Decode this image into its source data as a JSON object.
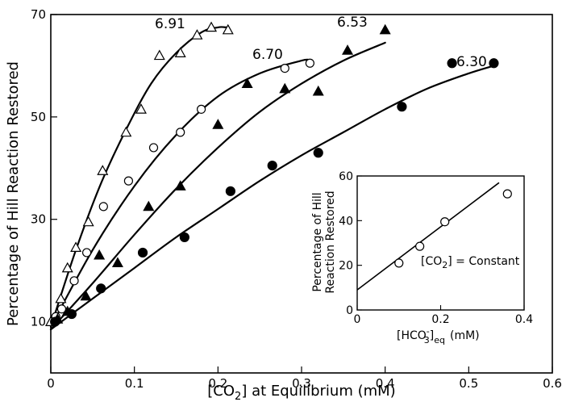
{
  "chart_data": [
    {
      "type": "scatter",
      "title": "",
      "xlabel": "[CO2] at Equilibrium (mM)",
      "ylabel": "Percentage of Hill Reaction Restored",
      "xlim": [
        0,
        0.6
      ],
      "ylim": [
        0,
        70
      ],
      "x_ticks": [
        "0",
        "0.1",
        "0.2",
        "0.3",
        "0.4",
        "0.5",
        "0.6"
      ],
      "y_ticks": [
        "10",
        "30",
        "50",
        "70"
      ],
      "y_tick_values": [
        10,
        30,
        50,
        70
      ],
      "grid": false,
      "series": [
        {
          "name": "6.91",
          "marker": "open-triangle",
          "points": [
            [
              0.0,
              10.0
            ],
            [
              0.012,
              14.5
            ],
            [
              0.02,
              20.5
            ],
            [
              0.03,
              24.5
            ],
            [
              0.045,
              29.5
            ],
            [
              0.062,
              39.5
            ],
            [
              0.09,
              47.0
            ],
            [
              0.108,
              51.5
            ],
            [
              0.13,
              62.0
            ],
            [
              0.155,
              62.5
            ],
            [
              0.175,
              66.0
            ],
            [
              0.192,
              67.5
            ],
            [
              0.212,
              67.0
            ]
          ],
          "curve": [
            [
              0.0,
              9.0
            ],
            [
              0.03,
              24.0
            ],
            [
              0.06,
              37.0
            ],
            [
              0.09,
              47.5
            ],
            [
              0.12,
              56.5
            ],
            [
              0.15,
              62.5
            ],
            [
              0.18,
              66.5
            ],
            [
              0.2,
              67.5
            ],
            [
              0.21,
              67.5
            ]
          ]
        },
        {
          "name": "6.70",
          "marker": "open-circle",
          "points": [
            [
              0.006,
              11.0
            ],
            [
              0.013,
              12.5
            ],
            [
              0.028,
              18.0
            ],
            [
              0.043,
              23.5
            ],
            [
              0.063,
              32.5
            ],
            [
              0.093,
              37.5
            ],
            [
              0.123,
              44.0
            ],
            [
              0.155,
              47.0
            ],
            [
              0.18,
              51.5
            ],
            [
              0.28,
              59.5
            ],
            [
              0.31,
              60.5
            ]
          ],
          "curve": [
            [
              0.0,
              9.0
            ],
            [
              0.05,
              24.0
            ],
            [
              0.1,
              36.5
            ],
            [
              0.15,
              46.5
            ],
            [
              0.2,
              54.0
            ],
            [
              0.25,
              58.5
            ],
            [
              0.3,
              61.0
            ],
            [
              0.31,
              61.0
            ]
          ]
        },
        {
          "name": "6.53",
          "marker": "filled-triangle",
          "points": [
            [
              0.008,
              10.5
            ],
            [
              0.02,
              12.0
            ],
            [
              0.042,
              15.0
            ],
            [
              0.058,
              23.0
            ],
            [
              0.08,
              21.5
            ],
            [
              0.117,
              32.5
            ],
            [
              0.155,
              36.5
            ],
            [
              0.2,
              48.5
            ],
            [
              0.235,
              56.5
            ],
            [
              0.28,
              55.5
            ],
            [
              0.32,
              55.0
            ],
            [
              0.355,
              63.0
            ],
            [
              0.4,
              67.0
            ]
          ],
          "curve": [
            [
              0.0,
              8.5
            ],
            [
              0.05,
              17.5
            ],
            [
              0.1,
              27.0
            ],
            [
              0.15,
              36.0
            ],
            [
              0.2,
              44.0
            ],
            [
              0.25,
              51.0
            ],
            [
              0.3,
              56.5
            ],
            [
              0.35,
              61.0
            ],
            [
              0.4,
              64.5
            ]
          ]
        },
        {
          "name": "6.30",
          "marker": "filled-circle",
          "points": [
            [
              0.005,
              10.0
            ],
            [
              0.025,
              11.5
            ],
            [
              0.06,
              16.5
            ],
            [
              0.11,
              23.5
            ],
            [
              0.16,
              26.5
            ],
            [
              0.215,
              35.5
            ],
            [
              0.265,
              40.5
            ],
            [
              0.32,
              43.0
            ],
            [
              0.42,
              52.0
            ],
            [
              0.48,
              60.5
            ],
            [
              0.53,
              60.5
            ]
          ],
          "curve": [
            [
              0.0,
              8.5
            ],
            [
              0.05,
              14.5
            ],
            [
              0.1,
              20.5
            ],
            [
              0.15,
              26.5
            ],
            [
              0.2,
              32.0
            ],
            [
              0.25,
              37.5
            ],
            [
              0.3,
              42.5
            ],
            [
              0.35,
              47.0
            ],
            [
              0.4,
              51.5
            ],
            [
              0.45,
              55.5
            ],
            [
              0.5,
              58.5
            ],
            [
              0.53,
              60.0
            ]
          ]
        }
      ]
    },
    {
      "type": "scatter",
      "title": "",
      "xlabel": "[HCO3-]eq (mM)",
      "ylabel": "Percentage of Hill Reaction Restored",
      "xlim": [
        0,
        0.4
      ],
      "ylim": [
        0,
        60
      ],
      "x_ticks": [
        "0",
        "0.2",
        "0.4"
      ],
      "y_ticks": [
        "0",
        "20",
        "40",
        "60"
      ],
      "y_tick_values": [
        0,
        20,
        40,
        60
      ],
      "annotation": "[CO2] = Constant",
      "grid": false,
      "series": [
        {
          "marker": "open-circle",
          "points": [
            [
              0.1,
              21.0
            ],
            [
              0.15,
              28.5
            ],
            [
              0.21,
              39.5
            ],
            [
              0.36,
              52.0
            ]
          ],
          "line": [
            [
              0.0,
              9.0
            ],
            [
              0.34,
              57.0
            ]
          ]
        }
      ]
    }
  ],
  "labels": {
    "main_xlabel_prefix": "[CO",
    "main_xlabel_sub": "2",
    "main_xlabel_suffix": "] at Equilibrium (mM)",
    "main_ylabel": "Percentage of Hill Reaction Restored",
    "inset_ylabel_line1": "Percentage of Hill",
    "inset_ylabel_line2": "Reaction Restored",
    "inset_xlabel_prefix": "[HCO",
    "inset_xlabel_sub": "3",
    "inset_xlabel_sup": "-",
    "inset_xlabel_bracket": "]",
    "inset_xlabel_eq": "eq",
    "inset_xlabel_unit": "(mM)",
    "inset_ann_prefix": "[CO",
    "inset_ann_sub": "2",
    "inset_ann_suffix": "] = Constant"
  }
}
